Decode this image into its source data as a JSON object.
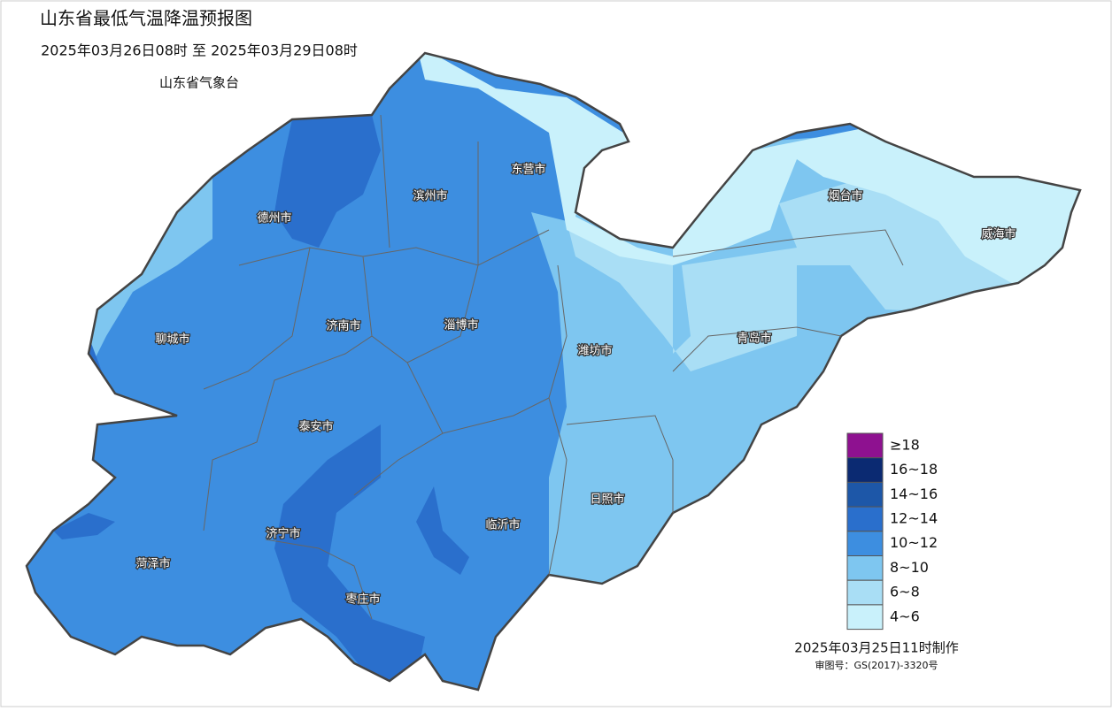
{
  "header": {
    "title": "山东省最低气温降温预报图",
    "period": "2025年03月26日08时  至  2025年03月29日08时",
    "agency": "山东省气象台"
  },
  "cities": [
    {
      "label": "德州市"
    },
    {
      "label": "滨州市"
    },
    {
      "label": "东营市"
    },
    {
      "label": "烟台市"
    },
    {
      "label": "威海市"
    },
    {
      "label": "聊城市"
    },
    {
      "label": "济南市"
    },
    {
      "label": "淄博市"
    },
    {
      "label": "潍坊市"
    },
    {
      "label": "青岛市"
    },
    {
      "label": "泰安市"
    },
    {
      "label": "济宁市"
    },
    {
      "label": "临沂市"
    },
    {
      "label": "日照市"
    },
    {
      "label": "菏泽市"
    },
    {
      "label": "枣庄市"
    }
  ],
  "legend": {
    "items": [
      {
        "label": "≥18",
        "color": "#8e1190"
      },
      {
        "label": "16~18",
        "color": "#0b2a72"
      },
      {
        "label": "14~16",
        "color": "#1d57a8"
      },
      {
        "label": "12~14",
        "color": "#2a6fcc"
      },
      {
        "label": "10~12",
        "color": "#3d8ee0"
      },
      {
        "label": "8~10",
        "color": "#7ec6f0"
      },
      {
        "label": "6~8",
        "color": "#a9def5"
      },
      {
        "label": "4~6",
        "color": "#c9f1fb"
      }
    ]
  },
  "footer": {
    "made": "2025年03月25日11时制作",
    "approval": "审图号：GS(2017)-3320号"
  }
}
